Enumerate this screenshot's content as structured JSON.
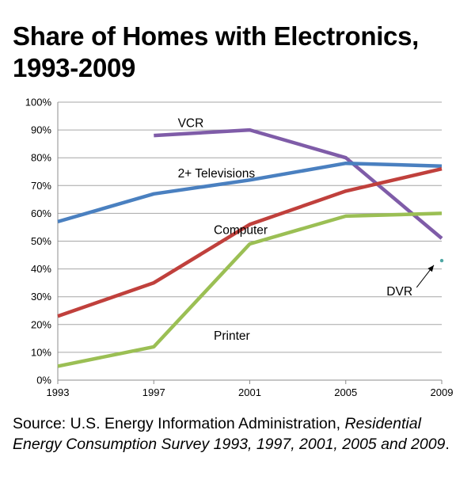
{
  "title_lines": [
    "Share of Homes with Electronics,",
    "1993-2009"
  ],
  "source": {
    "prefix": "Source: U.S. Energy Information Administration, ",
    "italic": "Residential Energy Consumption Survey 1993, 1997, 2001, 2005 and 2009",
    "suffix": "."
  },
  "chart_data": {
    "type": "line",
    "title": "Share of Homes with Electronics, 1993-2009",
    "x": [
      1993,
      1997,
      2001,
      2005,
      2009
    ],
    "x_tick_labels": [
      "1993",
      "1997",
      "2001",
      "2005",
      "2009"
    ],
    "y_tick_labels": [
      "0%",
      "10%",
      "20%",
      "30%",
      "40%",
      "50%",
      "60%",
      "70%",
      "80%",
      "90%",
      "100%"
    ],
    "ylim": [
      0,
      100
    ],
    "xlim": [
      1993,
      2009
    ],
    "grid": "horizontal",
    "series": [
      {
        "name": "VCR",
        "color": "#7f5ca8",
        "points": [
          [
            1997,
            88
          ],
          [
            2001,
            90
          ],
          [
            2005,
            80
          ],
          [
            2009,
            51
          ]
        ]
      },
      {
        "name": "2+ Televisions",
        "color": "#4a80c0",
        "points": [
          [
            1993,
            57
          ],
          [
            1997,
            67
          ],
          [
            2001,
            72
          ],
          [
            2005,
            78
          ],
          [
            2009,
            77
          ]
        ]
      },
      {
        "name": "Computer",
        "color": "#c0403c",
        "points": [
          [
            1993,
            23
          ],
          [
            1997,
            35
          ],
          [
            2001,
            56
          ],
          [
            2005,
            68
          ],
          [
            2009,
            76
          ]
        ]
      },
      {
        "name": "Printer",
        "color": "#9bbf54",
        "points": [
          [
            1993,
            5
          ],
          [
            1997,
            12
          ],
          [
            2001,
            49
          ],
          [
            2005,
            59
          ],
          [
            2009,
            60
          ]
        ]
      },
      {
        "name": "DVR",
        "color": "#4fa7a4",
        "points": [
          [
            2009,
            43
          ]
        ]
      }
    ],
    "annotations": [
      {
        "text": "VCR",
        "x": 1998.0,
        "y": 91
      },
      {
        "text": "2+ Televisions",
        "x": 1998.0,
        "y": 73
      },
      {
        "text": "Computer",
        "x": 1999.5,
        "y": 52.5
      },
      {
        "text": "Printer",
        "x": 1999.5,
        "y": 14.5
      },
      {
        "text": "DVR",
        "x": 2006.7,
        "y": 30.5,
        "arrow_to": [
          2009,
          42.5
        ]
      }
    ]
  }
}
